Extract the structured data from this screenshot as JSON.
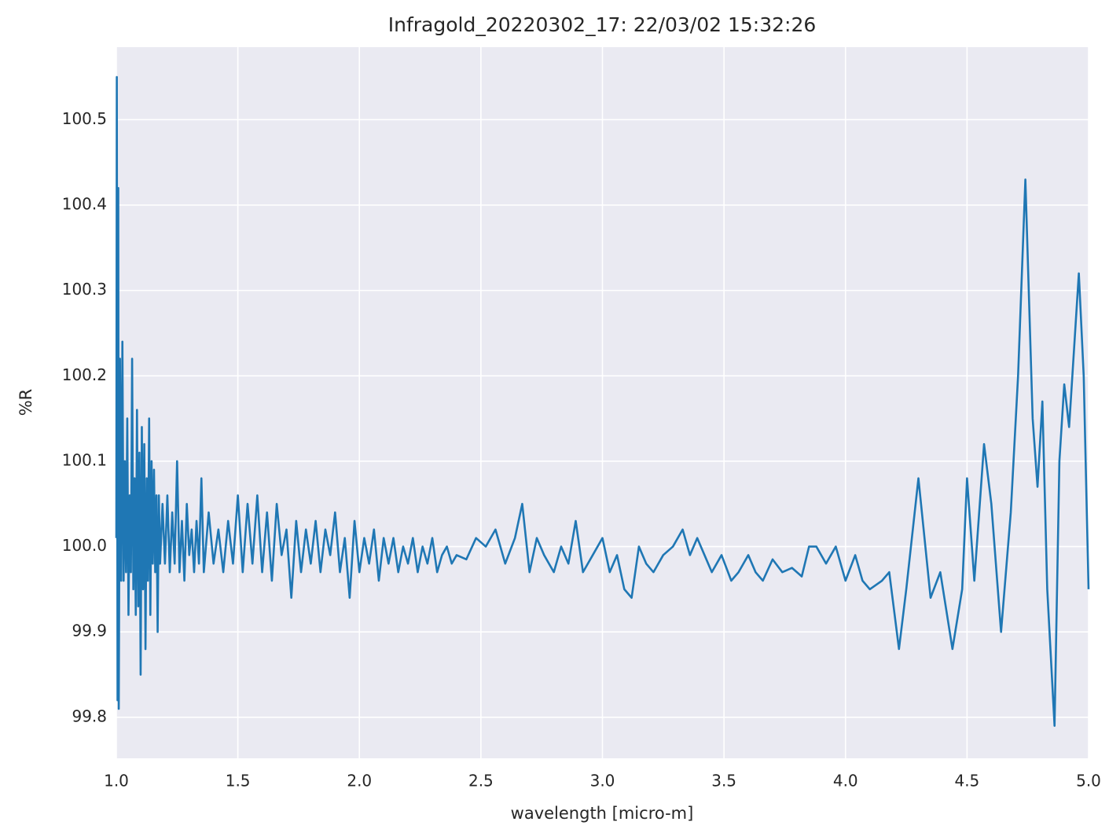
{
  "chart_data": {
    "type": "line",
    "title": "Infragold_20220302_17:  22/03/02 15:32:26",
    "xlabel": "wavelength [micro-m]",
    "ylabel": "%R",
    "color": "#1f77b4",
    "grid": true,
    "xlim": [
      1.0,
      5.0
    ],
    "ylim": [
      99.752,
      100.585
    ],
    "xticks": [
      {
        "value": 1.0,
        "label": "1.0"
      },
      1.5,
      {
        "value": 2.0,
        "label": "2.0"
      },
      2.5,
      {
        "value": 3.0,
        "label": "3.0"
      },
      3.5,
      {
        "value": 4.0,
        "label": "4.0"
      },
      4.5,
      {
        "value": 5.0,
        "label": "5.0"
      }
    ],
    "yticks": [
      99.8,
      99.9,
      {
        "value": 100.0,
        "label": "100.0"
      },
      100.1,
      100.2,
      100.3,
      100.4,
      100.5
    ],
    "x": [
      1.0,
      1.002,
      1.005,
      1.008,
      1.01,
      1.015,
      1.02,
      1.025,
      1.03,
      1.035,
      1.04,
      1.045,
      1.05,
      1.055,
      1.06,
      1.065,
      1.07,
      1.075,
      1.08,
      1.085,
      1.09,
      1.095,
      1.1,
      1.105,
      1.11,
      1.115,
      1.12,
      1.125,
      1.13,
      1.135,
      1.14,
      1.145,
      1.15,
      1.155,
      1.16,
      1.165,
      1.17,
      1.175,
      1.18,
      1.19,
      1.2,
      1.21,
      1.22,
      1.23,
      1.24,
      1.25,
      1.26,
      1.27,
      1.28,
      1.29,
      1.3,
      1.31,
      1.32,
      1.33,
      1.34,
      1.35,
      1.36,
      1.38,
      1.4,
      1.42,
      1.44,
      1.46,
      1.48,
      1.5,
      1.52,
      1.54,
      1.56,
      1.58,
      1.6,
      1.62,
      1.64,
      1.66,
      1.68,
      1.7,
      1.72,
      1.74,
      1.76,
      1.78,
      1.8,
      1.82,
      1.84,
      1.86,
      1.88,
      1.9,
      1.92,
      1.94,
      1.96,
      1.98,
      2.0,
      2.02,
      2.04,
      2.06,
      2.08,
      2.1,
      2.12,
      2.14,
      2.16,
      2.18,
      2.2,
      2.22,
      2.24,
      2.26,
      2.28,
      2.3,
      2.32,
      2.34,
      2.36,
      2.38,
      2.4,
      2.44,
      2.48,
      2.52,
      2.56,
      2.6,
      2.64,
      2.67,
      2.7,
      2.73,
      2.76,
      2.8,
      2.83,
      2.86,
      2.89,
      2.92,
      2.96,
      3.0,
      3.03,
      3.06,
      3.09,
      3.12,
      3.15,
      3.18,
      3.21,
      3.25,
      3.29,
      3.33,
      3.36,
      3.39,
      3.42,
      3.45,
      3.49,
      3.53,
      3.56,
      3.6,
      3.63,
      3.66,
      3.7,
      3.74,
      3.78,
      3.82,
      3.85,
      3.88,
      3.92,
      3.96,
      4.0,
      4.04,
      4.07,
      4.1,
      4.15,
      4.18,
      4.22,
      4.25,
      4.3,
      4.35,
      4.39,
      4.44,
      4.48,
      4.5,
      4.53,
      4.57,
      4.6,
      4.64,
      4.68,
      4.71,
      4.74,
      4.77,
      4.79,
      4.81,
      4.83,
      4.86,
      4.88,
      4.9,
      4.92,
      4.96,
      4.98,
      5.0
    ],
    "values": [
      100.01,
      100.55,
      99.82,
      100.42,
      99.81,
      100.22,
      99.96,
      100.24,
      99.96,
      100.1,
      99.97,
      100.15,
      99.92,
      100.06,
      99.97,
      100.22,
      99.95,
      100.08,
      99.92,
      100.16,
      99.93,
      100.11,
      99.85,
      100.14,
      99.95,
      100.12,
      99.88,
      100.08,
      99.96,
      100.15,
      99.92,
      100.1,
      99.98,
      100.09,
      99.97,
      100.06,
      99.9,
      100.06,
      99.98,
      100.05,
      99.98,
      100.06,
      99.97,
      100.04,
      99.98,
      100.1,
      99.97,
      100.03,
      99.96,
      100.05,
      99.99,
      100.02,
      99.97,
      100.03,
      99.98,
      100.08,
      99.97,
      100.04,
      99.98,
      100.02,
      99.97,
      100.03,
      99.98,
      100.06,
      99.97,
      100.05,
      99.98,
      100.06,
      99.97,
      100.04,
      99.96,
      100.05,
      99.99,
      100.02,
      99.94,
      100.03,
      99.97,
      100.02,
      99.98,
      100.03,
      99.97,
      100.02,
      99.99,
      100.04,
      99.97,
      100.01,
      99.94,
      100.03,
      99.97,
      100.01,
      99.98,
      100.02,
      99.96,
      100.01,
      99.98,
      100.01,
      99.97,
      100.0,
      99.98,
      100.01,
      99.97,
      100.0,
      99.98,
      100.01,
      99.97,
      99.99,
      100.0,
      99.98,
      99.99,
      99.985,
      100.01,
      100.0,
      100.02,
      99.98,
      100.01,
      100.05,
      99.97,
      100.01,
      99.99,
      99.97,
      100.0,
      99.98,
      100.03,
      99.97,
      99.99,
      100.01,
      99.97,
      99.99,
      99.95,
      99.94,
      100.0,
      99.98,
      99.97,
      99.99,
      100.0,
      100.02,
      99.99,
      100.01,
      99.99,
      99.97,
      99.99,
      99.96,
      99.97,
      99.99,
      99.97,
      99.96,
      99.985,
      99.97,
      99.975,
      99.965,
      100.0,
      100.0,
      99.98,
      100.0,
      99.96,
      99.99,
      99.96,
      99.95,
      99.96,
      99.97,
      99.88,
      99.95,
      100.08,
      99.94,
      99.97,
      99.88,
      99.95,
      100.08,
      99.96,
      100.12,
      100.05,
      99.9,
      100.04,
      100.2,
      100.43,
      100.15,
      100.07,
      100.17,
      99.95,
      99.79,
      100.1,
      100.19,
      100.14,
      100.32,
      100.2,
      99.95
    ]
  }
}
